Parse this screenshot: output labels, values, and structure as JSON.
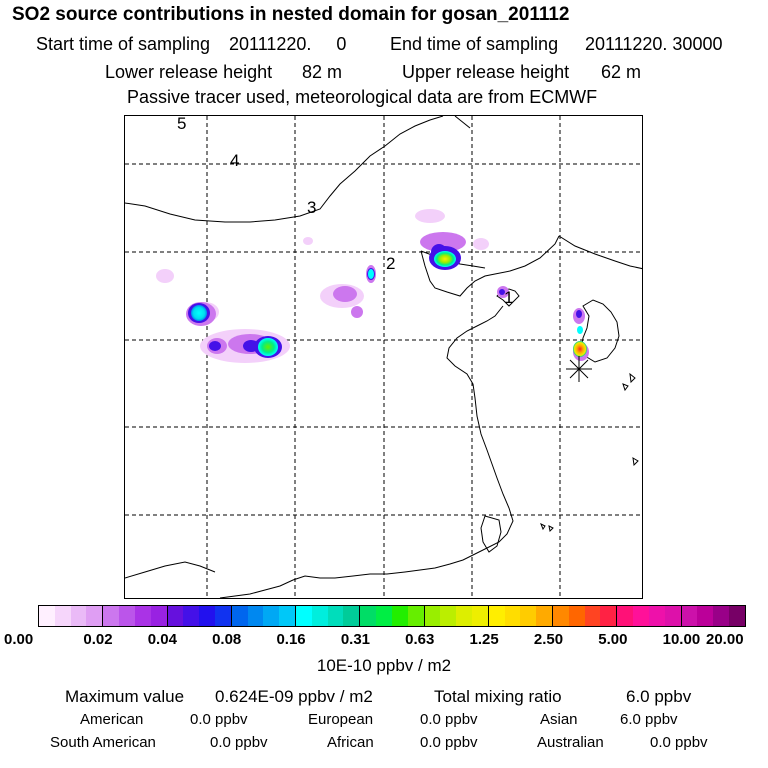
{
  "header": {
    "title": "SO2 source contributions in nested domain for gosan_201112",
    "start_label": "Start time of sampling",
    "start_value": "20111220.     0",
    "end_label": "End time of sampling",
    "end_value": "20111220. 30000",
    "lower_label": "Lower release height",
    "lower_value": "82 m",
    "upper_label": "Upper release height",
    "upper_value": "62 m",
    "tracer_note": "Passive tracer used, meteorological data are from ECMWF"
  },
  "map": {
    "region_labels": [
      "1",
      "2",
      "3",
      "4",
      "5"
    ],
    "receptor_symbol": "asterisk"
  },
  "colorbar": {
    "tick_labels": [
      "0.00",
      "0.02",
      "0.04",
      "0.08",
      "0.16",
      "0.31",
      "0.63",
      "1.25",
      "2.50",
      "5.00",
      "10.00",
      "20.00"
    ],
    "colors": [
      "#fff0ff",
      "#f6d6fb",
      "#eabaf7",
      "#df9ef3",
      "#cc77ee",
      "#bb55ea",
      "#aa33e6",
      "#9922e2",
      "#6611dd",
      "#4411e8",
      "#2211ee",
      "#1133f0",
      "#0066ee",
      "#0088f0",
      "#00a8f4",
      "#00c8f8",
      "#00ffff",
      "#00eedd",
      "#00ddbb",
      "#00cc99",
      "#00dd66",
      "#00ee44",
      "#22ee00",
      "#66ee00",
      "#99ee00",
      "#bbee00",
      "#ddee00",
      "#eeee00",
      "#ffee00",
      "#ffdd00",
      "#ffcc00",
      "#ffaa00",
      "#ff8800",
      "#ff6600",
      "#ff4422",
      "#ff2244",
      "#ff1177",
      "#ff1199",
      "#ee11aa",
      "#dd11aa",
      "#cc11aa",
      "#bb0099",
      "#990088",
      "#770066"
    ],
    "unit": "10E-10 ppbv / m2"
  },
  "summary": {
    "max_label": "Maximum value",
    "max_value": "0.624E-09 ppbv / m2",
    "total_label": "Total mixing ratio",
    "total_value": "6.0 ppbv",
    "american_label": "American",
    "american_value": "0.0 ppbv",
    "european_label": "European",
    "european_value": "0.0 ppbv",
    "asian_label": "Asian",
    "asian_value": "6.0 ppbv",
    "south_american_label": "South American",
    "south_american_value": "0.0 ppbv",
    "african_label": "African",
    "african_value": "0.0 ppbv",
    "australian_label": "Australian",
    "australian_value": "0.0 ppbv"
  }
}
